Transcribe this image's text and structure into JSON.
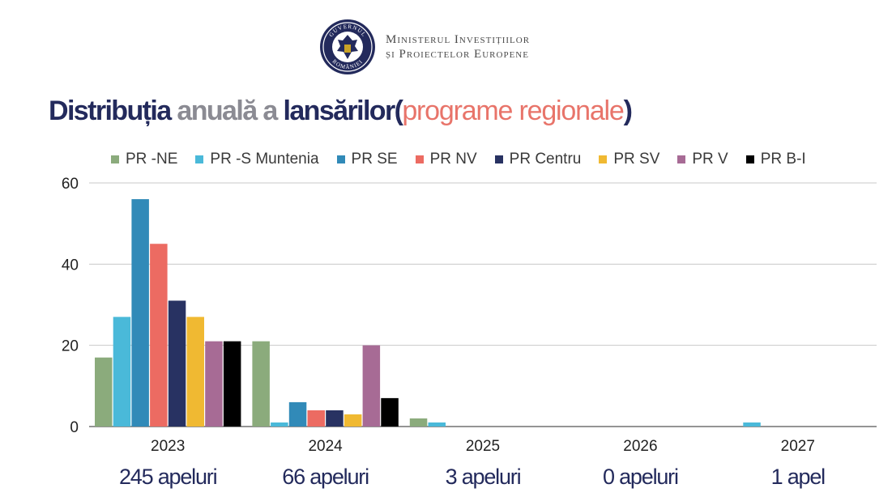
{
  "header": {
    "seal_text": [
      "GUVERNUL",
      "ROMÂNIEI"
    ],
    "ministry_line1": "Ministerul Investițiilor",
    "ministry_line2": "și Proiectelor Europene"
  },
  "title": {
    "part1": "Distribuția",
    "part2": "anuală a",
    "part3": "lansărilor",
    "paren_open": "(",
    "subtitle": "programe regionale",
    "paren_close": ")"
  },
  "bottom_labels": [
    "245 apeluri",
    "66 apeluri",
    "3 apeluri",
    "0 apeluri",
    "1 apel"
  ],
  "chart_data": {
    "type": "bar",
    "title": "Distribuția anuală a lansărilor (programe regionale)",
    "categories": [
      "2023",
      "2024",
      "2025",
      "2026",
      "2027"
    ],
    "ylim": [
      0,
      60
    ],
    "yticks": [
      0,
      20,
      40,
      60
    ],
    "grid": true,
    "legend": "top",
    "series": [
      {
        "name": "PR -NE",
        "color": "#8bab7c",
        "values": [
          17,
          21,
          2,
          0,
          0
        ]
      },
      {
        "name": "PR -S Muntenia",
        "color": "#4ab9d9",
        "values": [
          27,
          1,
          1,
          0,
          1
        ]
      },
      {
        "name": "PR SE",
        "color": "#318ab8",
        "values": [
          56,
          6,
          0,
          0,
          0
        ]
      },
      {
        "name": "PR NV",
        "color": "#ec6b62",
        "values": [
          45,
          4,
          0,
          0,
          0
        ]
      },
      {
        "name": "PR Centru",
        "color": "#283262",
        "values": [
          31,
          4,
          0,
          0,
          0
        ]
      },
      {
        "name": "PR SV",
        "color": "#f0b932",
        "values": [
          27,
          3,
          0,
          0,
          0
        ]
      },
      {
        "name": "PR V",
        "color": "#a76b95",
        "values": [
          21,
          20,
          0,
          0,
          0
        ]
      },
      {
        "name": "PR B-I",
        "color": "#000000",
        "values": [
          21,
          7,
          0,
          0,
          0
        ]
      }
    ]
  }
}
